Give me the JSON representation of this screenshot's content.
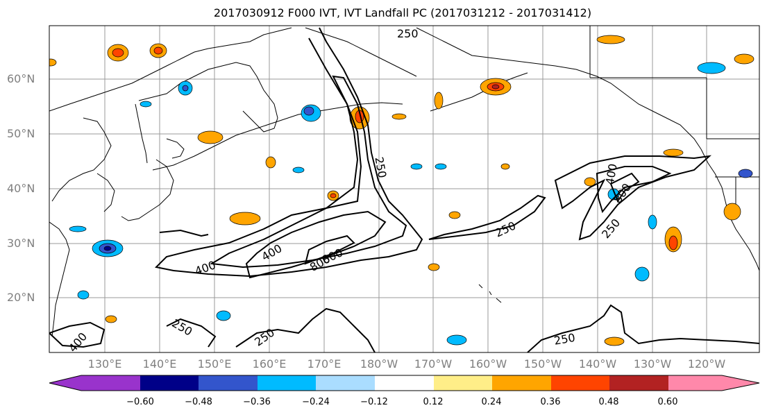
{
  "title": "2017030912 F000 IVT, IVT Landfall PC (2017031212 - 2017031412)",
  "lat_labels": [
    "60°N",
    "50°N",
    "40°N",
    "30°N",
    "20°N"
  ],
  "lon_labels": [
    "130°E",
    "140°E",
    "150°E",
    "160°E",
    "170°E",
    "180°W",
    "170°W",
    "160°W",
    "150°W",
    "140°W",
    "130°W",
    "120°W"
  ],
  "colorbar": {
    "colors": [
      "#9933cc",
      "#000088",
      "#3355cc",
      "#00bbff",
      "#aaddff",
      "#ffffff",
      "#ffee88",
      "#ffa500",
      "#ff4400",
      "#b22222",
      "#ff88aa"
    ],
    "ticks": [
      "−0.60",
      "−0.48",
      "−0.36",
      "−0.24",
      "−0.12",
      "0.12",
      "0.24",
      "0.36",
      "0.48",
      "0.60"
    ]
  },
  "contour_labels": [
    "250",
    "250",
    "250",
    "400",
    "400",
    "800",
    "800",
    "250",
    "400",
    "800",
    "250",
    "250",
    "250",
    "400",
    "250"
  ]
}
